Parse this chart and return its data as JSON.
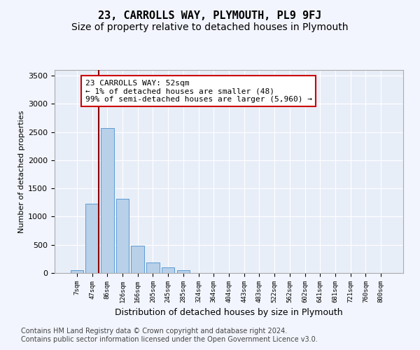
{
  "title": "23, CARROLLS WAY, PLYMOUTH, PL9 9FJ",
  "subtitle": "Size of property relative to detached houses in Plymouth",
  "xlabel": "Distribution of detached houses by size in Plymouth",
  "ylabel": "Number of detached properties",
  "bar_labels": [
    "7sqm",
    "47sqm",
    "86sqm",
    "126sqm",
    "166sqm",
    "205sqm",
    "245sqm",
    "285sqm",
    "324sqm",
    "364sqm",
    "404sqm",
    "443sqm",
    "483sqm",
    "522sqm",
    "562sqm",
    "602sqm",
    "641sqm",
    "681sqm",
    "721sqm",
    "760sqm",
    "800sqm"
  ],
  "bar_values": [
    50,
    1230,
    2570,
    1310,
    490,
    185,
    105,
    50,
    0,
    0,
    0,
    0,
    0,
    0,
    0,
    0,
    0,
    0,
    0,
    0,
    0
  ],
  "bar_color": "#b8d0e8",
  "bar_edge_color": "#5b9bd5",
  "vline_color": "#8b0000",
  "annotation_text": "23 CARROLLS WAY: 52sqm\n← 1% of detached houses are smaller (48)\n99% of semi-detached houses are larger (5,960) →",
  "annotation_box_color": "white",
  "annotation_box_edge": "#cc0000",
  "ylim": [
    0,
    3600
  ],
  "yticks": [
    0,
    500,
    1000,
    1500,
    2000,
    2500,
    3000,
    3500
  ],
  "bg_color": "#f2f5fd",
  "plot_bg_color": "#e8eef8",
  "footer1": "Contains HM Land Registry data © Crown copyright and database right 2024.",
  "footer2": "Contains public sector information licensed under the Open Government Licence v3.0.",
  "title_fontsize": 11,
  "subtitle_fontsize": 10,
  "annotation_fontsize": 8,
  "footer_fontsize": 7
}
